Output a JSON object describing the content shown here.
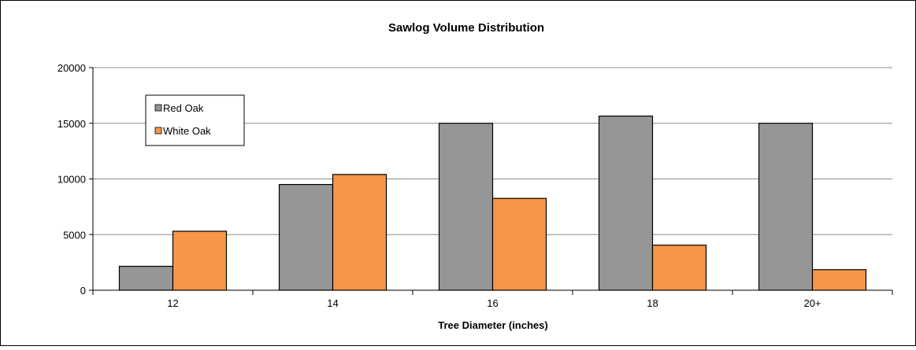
{
  "chart_data": {
    "type": "bar",
    "title": "Sawlog Volume Distribution",
    "xlabel": "Tree Diameter (inches)",
    "ylabel": "",
    "categories": [
      "12",
      "14",
      "16",
      "18",
      "20+"
    ],
    "series": [
      {
        "name": "Red Oak",
        "color": "#969696",
        "values": [
          2150,
          9500,
          15000,
          15650,
          15000
        ]
      },
      {
        "name": "White Oak",
        "color": "#f79646",
        "values": [
          5300,
          10400,
          8250,
          4050,
          1850
        ]
      }
    ],
    "ylim": [
      0,
      20000
    ],
    "yticks": [
      "0",
      "5000",
      "10000",
      "15000",
      "20000"
    ],
    "grid": true,
    "legend_position": "top-left"
  }
}
